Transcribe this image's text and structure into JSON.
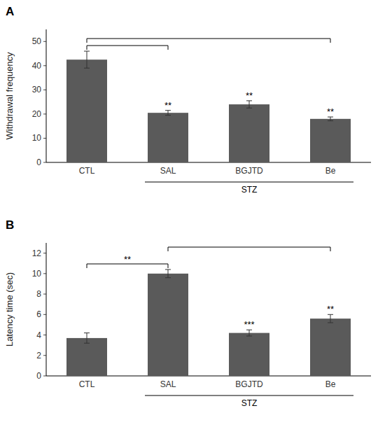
{
  "chart_data": [
    {
      "type": "bar",
      "title": "A",
      "categories": [
        "CTL",
        "SAL",
        "BGJTD",
        "Be"
      ],
      "values": [
        42.5,
        20.5,
        24.0,
        18.0
      ],
      "errors": [
        3.5,
        1.0,
        1.5,
        0.8
      ],
      "ylabel": "Withdrawal frequency",
      "ylim": [
        0,
        55
      ],
      "yticks": [
        0,
        10,
        20,
        30,
        40,
        50
      ],
      "color": "#5a5a5a",
      "annotations": [
        {
          "text": "**",
          "category": "SAL"
        },
        {
          "text": "**",
          "category": "BGJTD"
        },
        {
          "text": "**",
          "category": "Be"
        },
        {
          "text": "STZ",
          "from": "SAL",
          "to": "Be"
        }
      ],
      "brackets": [
        {
          "from": "CTL",
          "to": "SAL"
        },
        {
          "from": "CTL",
          "to": "Be"
        }
      ]
    },
    {
      "type": "bar",
      "title": "B",
      "categories": [
        "CTL",
        "SAL",
        "BGJTD",
        "Be"
      ],
      "values": [
        3.7,
        10.0,
        4.2,
        5.6
      ],
      "errors": [
        0.5,
        0.4,
        0.3,
        0.4
      ],
      "ylabel": "Latency time (sec)",
      "ylim": [
        0,
        13
      ],
      "yticks": [
        0,
        2,
        4,
        6,
        8,
        10,
        12
      ],
      "color": "#5a5a5a",
      "annotations": [
        {
          "text": "***",
          "category": "BGJTD"
        },
        {
          "text": "**",
          "category": "Be"
        },
        {
          "text": "STZ",
          "from": "SAL",
          "to": "Be"
        }
      ],
      "brackets": [
        {
          "from": "CTL",
          "to": "SAL",
          "text": "**"
        },
        {
          "from": "SAL",
          "to": "Be"
        }
      ]
    }
  ]
}
